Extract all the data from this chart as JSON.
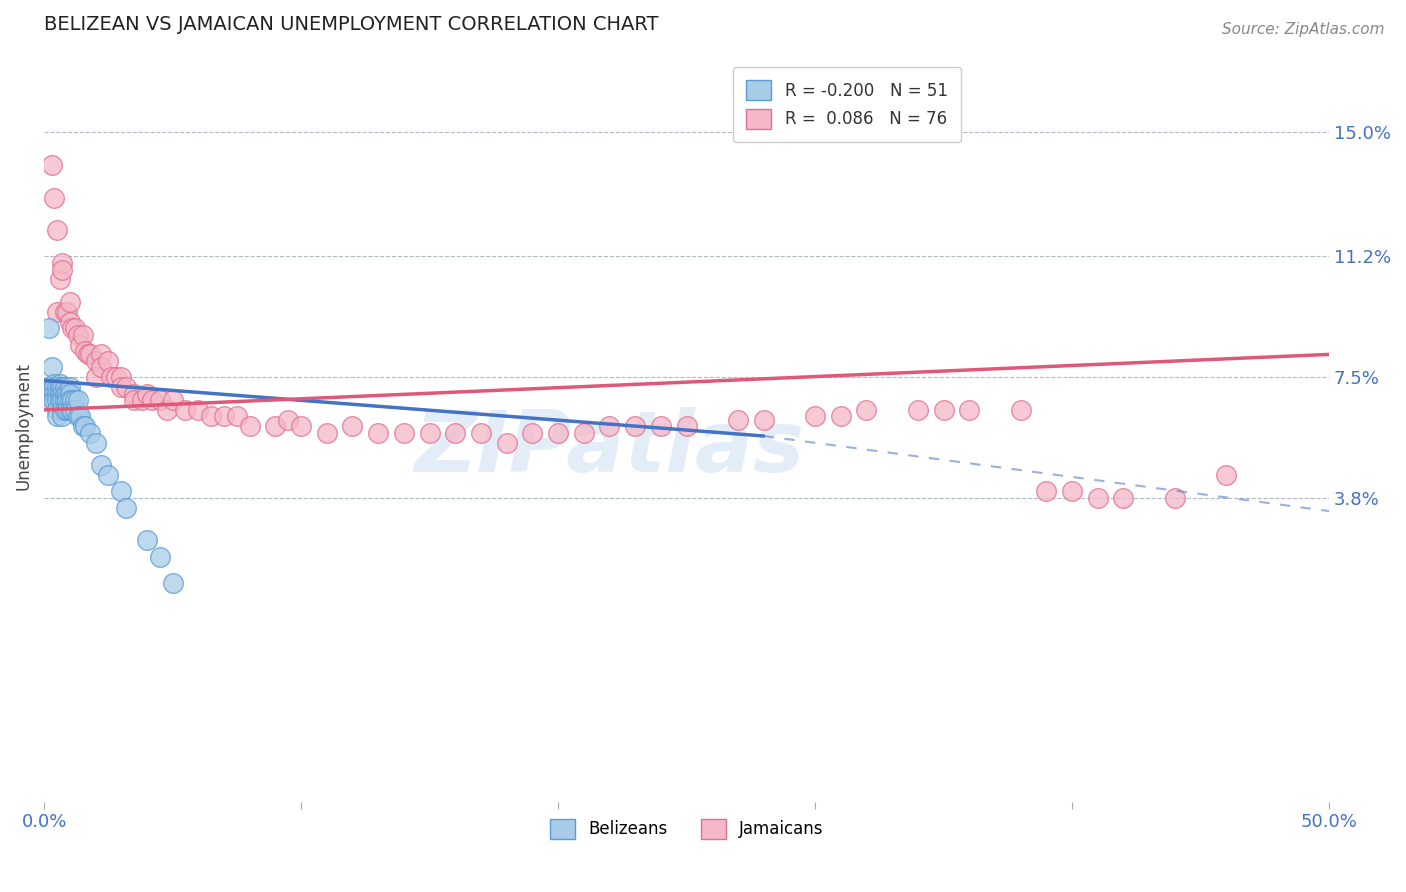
{
  "title": "BELIZEAN VS JAMAICAN UNEMPLOYMENT CORRELATION CHART",
  "source": "Source: ZipAtlas.com",
  "ylabel": "Unemployment",
  "yticks": [
    "15.0%",
    "11.2%",
    "7.5%",
    "3.8%"
  ],
  "ytick_vals": [
    0.15,
    0.112,
    0.075,
    0.038
  ],
  "xrange": [
    0.0,
    0.5
  ],
  "yrange": [
    -0.055,
    0.175
  ],
  "belizean_R": "-0.200",
  "belizean_N": "51",
  "jamaican_R": "0.086",
  "jamaican_N": "76",
  "belizean_color": "#a8cce8",
  "jamaican_color": "#f4b8c8",
  "belizean_edge_color": "#5b9bd5",
  "jamaican_edge_color": "#e07090",
  "belizean_line_color": "#4472C4",
  "jamaican_line_color": "#e05878",
  "background_color": "#ffffff",
  "watermark": "ZIPatlas",
  "belizean_points_x": [
    0.002,
    0.002,
    0.003,
    0.003,
    0.004,
    0.004,
    0.004,
    0.004,
    0.005,
    0.005,
    0.005,
    0.005,
    0.005,
    0.006,
    0.006,
    0.006,
    0.006,
    0.007,
    0.007,
    0.007,
    0.007,
    0.007,
    0.008,
    0.008,
    0.008,
    0.008,
    0.009,
    0.009,
    0.009,
    0.01,
    0.01,
    0.01,
    0.01,
    0.011,
    0.011,
    0.012,
    0.012,
    0.013,
    0.013,
    0.014,
    0.015,
    0.016,
    0.018,
    0.02,
    0.022,
    0.025,
    0.03,
    0.032,
    0.04,
    0.045,
    0.05
  ],
  "belizean_points_y": [
    0.09,
    0.072,
    0.078,
    0.068,
    0.073,
    0.072,
    0.07,
    0.068,
    0.072,
    0.07,
    0.068,
    0.065,
    0.063,
    0.073,
    0.072,
    0.07,
    0.068,
    0.072,
    0.07,
    0.068,
    0.065,
    0.063,
    0.072,
    0.07,
    0.068,
    0.065,
    0.07,
    0.068,
    0.065,
    0.072,
    0.07,
    0.068,
    0.065,
    0.068,
    0.065,
    0.068,
    0.065,
    0.068,
    0.063,
    0.063,
    0.06,
    0.06,
    0.058,
    0.055,
    0.048,
    0.045,
    0.04,
    0.035,
    0.025,
    0.02,
    0.012
  ],
  "jamaican_points_x": [
    0.003,
    0.004,
    0.005,
    0.005,
    0.006,
    0.007,
    0.007,
    0.008,
    0.009,
    0.01,
    0.01,
    0.011,
    0.012,
    0.013,
    0.014,
    0.015,
    0.016,
    0.017,
    0.018,
    0.02,
    0.02,
    0.022,
    0.022,
    0.025,
    0.026,
    0.028,
    0.03,
    0.03,
    0.032,
    0.035,
    0.035,
    0.038,
    0.04,
    0.042,
    0.045,
    0.048,
    0.05,
    0.055,
    0.06,
    0.065,
    0.07,
    0.075,
    0.08,
    0.09,
    0.095,
    0.1,
    0.11,
    0.12,
    0.13,
    0.14,
    0.15,
    0.16,
    0.17,
    0.18,
    0.19,
    0.2,
    0.21,
    0.22,
    0.23,
    0.24,
    0.25,
    0.27,
    0.28,
    0.3,
    0.31,
    0.32,
    0.34,
    0.35,
    0.36,
    0.38,
    0.39,
    0.4,
    0.41,
    0.42,
    0.44,
    0.46
  ],
  "jamaican_points_y": [
    0.14,
    0.13,
    0.095,
    0.12,
    0.105,
    0.11,
    0.108,
    0.095,
    0.095,
    0.098,
    0.092,
    0.09,
    0.09,
    0.088,
    0.085,
    0.088,
    0.083,
    0.082,
    0.082,
    0.08,
    0.075,
    0.082,
    0.078,
    0.08,
    0.075,
    0.075,
    0.075,
    0.072,
    0.072,
    0.07,
    0.068,
    0.068,
    0.07,
    0.068,
    0.068,
    0.065,
    0.068,
    0.065,
    0.065,
    0.063,
    0.063,
    0.063,
    0.06,
    0.06,
    0.062,
    0.06,
    0.058,
    0.06,
    0.058,
    0.058,
    0.058,
    0.058,
    0.058,
    0.055,
    0.058,
    0.058,
    0.058,
    0.06,
    0.06,
    0.06,
    0.06,
    0.062,
    0.062,
    0.063,
    0.063,
    0.065,
    0.065,
    0.065,
    0.065,
    0.065,
    0.04,
    0.04,
    0.038,
    0.038,
    0.038,
    0.045
  ]
}
